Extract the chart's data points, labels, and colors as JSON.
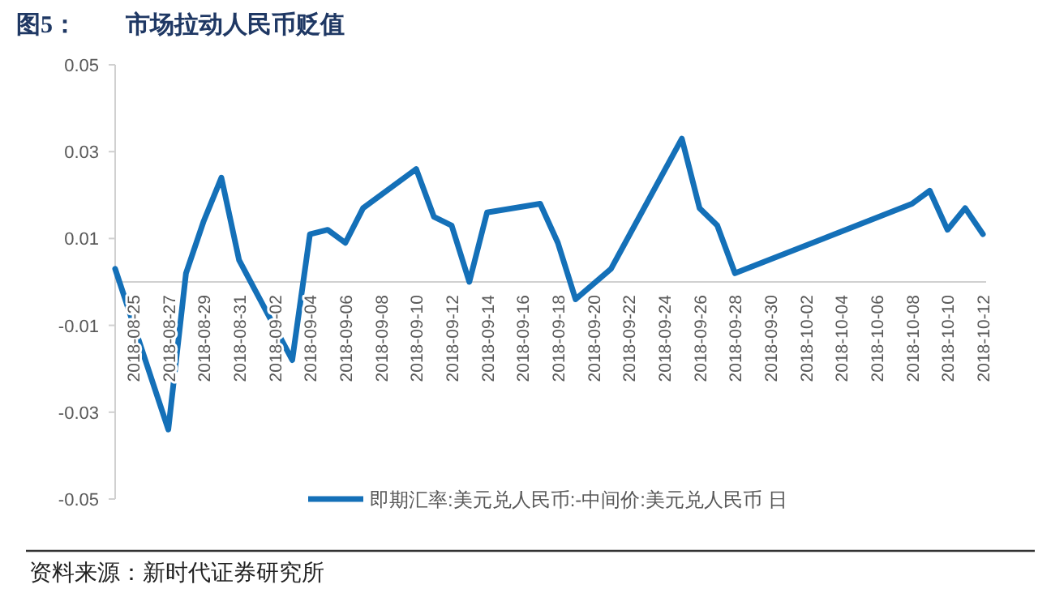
{
  "chart_data": {
    "type": "line",
    "title": "图5：　　市场拉动人民币贬值",
    "x": [
      "2018-08-24",
      "2018-08-27",
      "2018-08-28",
      "2018-08-29",
      "2018-08-30",
      "2018-08-31",
      "2018-09-03",
      "2018-09-04",
      "2018-09-05",
      "2018-09-06",
      "2018-09-07",
      "2018-09-10",
      "2018-09-11",
      "2018-09-12",
      "2018-09-13",
      "2018-09-14",
      "2018-09-17",
      "2018-09-18",
      "2018-09-19",
      "2018-09-21",
      "2018-09-25",
      "2018-09-26",
      "2018-09-27",
      "2018-09-28",
      "2018-10-08",
      "2018-10-09",
      "2018-10-10",
      "2018-10-11",
      "2018-10-12"
    ],
    "series": [
      {
        "name": "即期汇率:美元兑人民币:-中间价:美元兑人民币 日",
        "color": "#1470b8",
        "values": [
          0.003,
          -0.034,
          0.002,
          0.014,
          0.024,
          0.005,
          -0.018,
          0.011,
          0.012,
          0.009,
          0.017,
          0.026,
          0.015,
          0.013,
          0.0,
          0.016,
          0.018,
          0.009,
          -0.004,
          0.003,
          0.033,
          0.017,
          0.013,
          0.002,
          0.018,
          0.021,
          0.012,
          0.017,
          0.011
        ]
      }
    ],
    "xlim": [
      "2018-08-24",
      "2018-10-12"
    ],
    "xticks": [
      "2018-08-25",
      "2018-08-27",
      "2018-08-29",
      "2018-08-31",
      "2018-09-02",
      "2018-09-04",
      "2018-09-06",
      "2018-09-08",
      "2018-09-10",
      "2018-09-12",
      "2018-09-14",
      "2018-09-16",
      "2018-09-18",
      "2018-09-20",
      "2018-09-22",
      "2018-09-24",
      "2018-09-26",
      "2018-09-28",
      "2018-09-30",
      "2018-10-02",
      "2018-10-04",
      "2018-10-06",
      "2018-10-08",
      "2018-10-10",
      "2018-10-12"
    ],
    "ylim": [
      -0.05,
      0.05
    ],
    "yticks": [
      -0.05,
      -0.03,
      -0.01,
      0.01,
      0.03,
      0.05
    ],
    "grid": false,
    "legend": "bottom",
    "marker": "none",
    "annotations": [
      "资料来源：新时代证券研究所"
    ]
  }
}
